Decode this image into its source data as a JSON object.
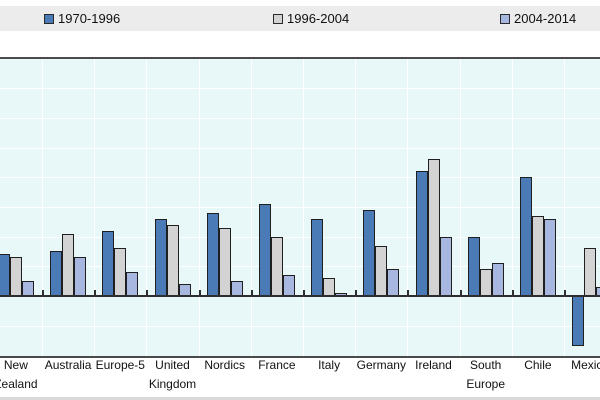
{
  "legend": {
    "items": [
      {
        "label": "1970-1996",
        "color": "#4a7bb7"
      },
      {
        "label": "1996-2004",
        "color": "#d3d3d3"
      },
      {
        "label": "2004-2014",
        "color": "#a8b7e0"
      }
    ]
  },
  "colors": {
    "plot_background": "#e8f7f8",
    "gridline": "#ffffff",
    "axis_line": "#2e2e2e",
    "plot_border": "#4b4b4b",
    "bar_border": "#1f1f1f",
    "legend_band": "#ececec",
    "text": "#111111"
  },
  "chart_data": {
    "type": "bar",
    "title": "",
    "xlabel": "",
    "ylabel": "",
    "ylim": [
      -2,
      8
    ],
    "grid": true,
    "legend_position": "top",
    "categories": [
      "New Zealand",
      "Australia",
      "Europe-5",
      "United Kingdom",
      "Nordics",
      "France",
      "Italy",
      "Germany",
      "Ireland",
      "South Europe",
      "Chile",
      "Mexico"
    ],
    "series": [
      {
        "name": "1970-1996",
        "color": "#4a7bb7",
        "values": [
          1.4,
          1.5,
          2.2,
          2.6,
          2.8,
          3.1,
          2.6,
          2.9,
          4.2,
          2.0,
          4.0,
          -1.7
        ]
      },
      {
        "name": "1996-2004",
        "color": "#d3d3d3",
        "values": [
          1.3,
          2.1,
          1.6,
          2.4,
          2.3,
          2.0,
          0.6,
          1.7,
          4.6,
          0.9,
          2.7,
          1.6
        ]
      },
      {
        "name": "2004-2014",
        "color": "#a8b7e0",
        "values": [
          0.5,
          1.3,
          0.8,
          0.4,
          0.5,
          0.7,
          0.1,
          0.9,
          2.0,
          1.1,
          2.6,
          0.3
        ]
      }
    ]
  }
}
